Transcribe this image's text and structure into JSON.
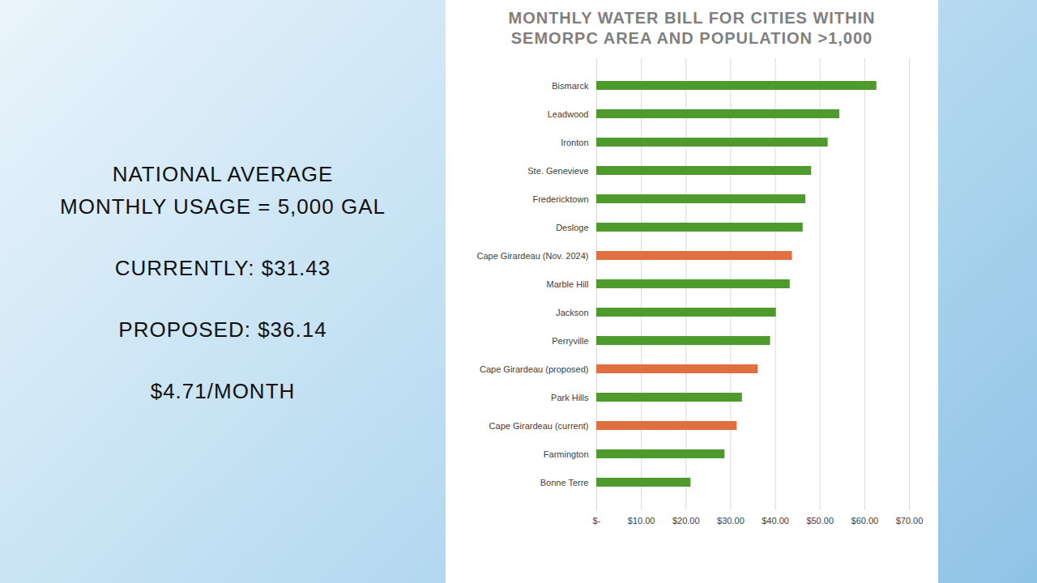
{
  "chart_data": {
    "type": "bar",
    "orientation": "horizontal",
    "title": "MONTHLY WATER BILL FOR CITIES WITHIN SEMORPC AREA AND POPULATION >1,000",
    "categories": [
      "Bismarck",
      "Leadwood",
      "Ironton",
      "Ste. Genevieve",
      "Fredericktown",
      "Desloge",
      "Cape Girardeau (Nov. 2024)",
      "Marble Hill",
      "Jackson",
      "Perryville",
      "Cape Girardeau (proposed)",
      "Park Hills",
      "Cape Girardeau (current)",
      "Farmington",
      "Bonne Terre"
    ],
    "values": [
      62.7,
      54.4,
      51.8,
      48.1,
      46.8,
      46.2,
      43.8,
      43.3,
      40.2,
      38.9,
      36.14,
      32.6,
      31.43,
      28.7,
      21.1
    ],
    "colors": [
      "#4f9a2d",
      "#4f9a2d",
      "#4f9a2d",
      "#4f9a2d",
      "#4f9a2d",
      "#4f9a2d",
      "#e0703f",
      "#4f9a2d",
      "#4f9a2d",
      "#4f9a2d",
      "#e0703f",
      "#4f9a2d",
      "#e0703f",
      "#4f9a2d",
      "#4f9a2d"
    ],
    "xlim": [
      0,
      70
    ],
    "xticks": [
      {
        "value": 0,
        "label": "$-"
      },
      {
        "value": 10,
        "label": "$10.00"
      },
      {
        "value": 20,
        "label": "$20.00"
      },
      {
        "value": 30,
        "label": "$30.00"
      },
      {
        "value": 40,
        "label": "$40.00"
      },
      {
        "value": 50,
        "label": "$50.00"
      },
      {
        "value": 60,
        "label": "$60.00"
      },
      {
        "value": 70,
        "label": "$70.00"
      }
    ],
    "grid": true
  },
  "slide_text": [
    [
      "NATIONAL AVERAGE",
      "MONTHLY USAGE = 5,000 GAL"
    ],
    [
      "CURRENTLY: $31.43"
    ],
    [
      "PROPOSED: $36.14"
    ],
    [
      "$4.71/MONTH"
    ]
  ]
}
